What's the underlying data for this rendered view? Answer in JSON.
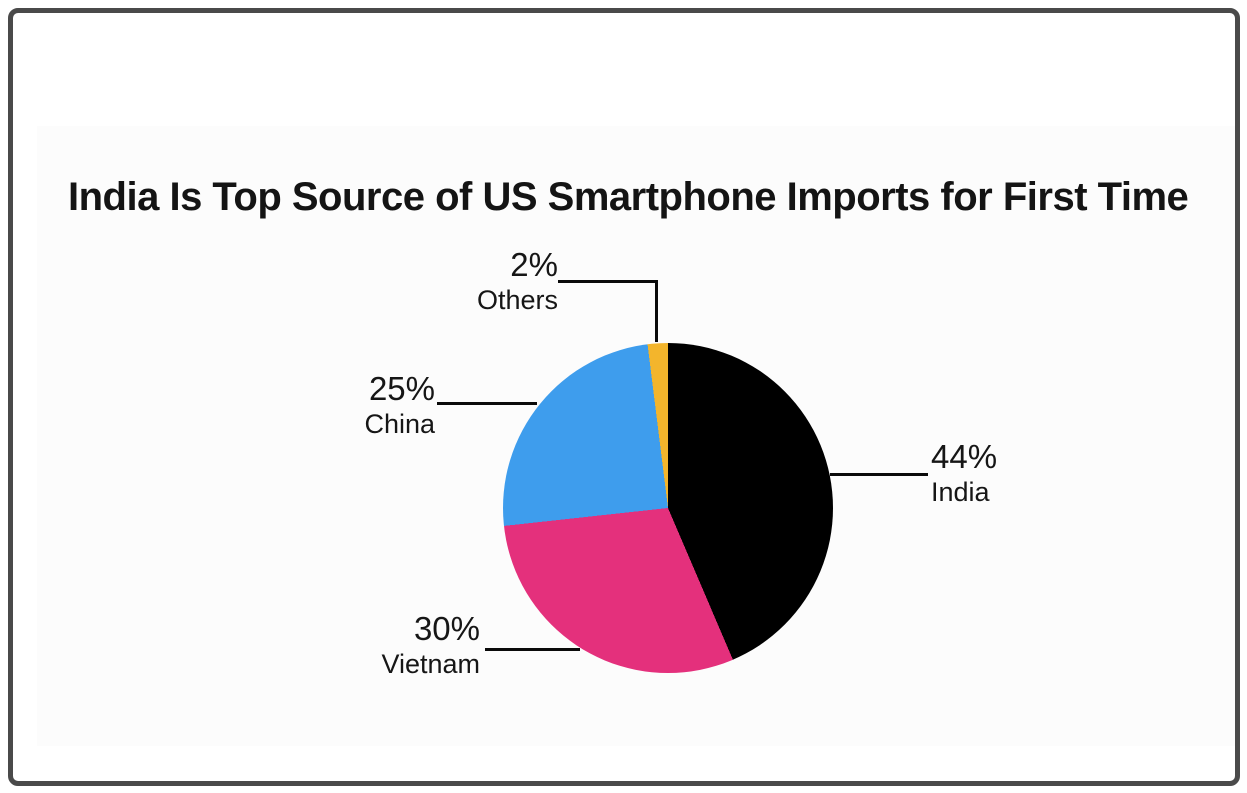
{
  "frame": {
    "border_color": "#4a4a4a",
    "panel_bg": "#fcfcfc",
    "page_bg": "#ffffff",
    "leader_line_color": "#0a0a0a",
    "text_color": "#161616"
  },
  "chart_data": {
    "type": "pie",
    "title": "India Is Top Source of US Smartphone Imports for First Time",
    "unit": "%",
    "start_angle_deg": 0,
    "direction": "clockwise",
    "label_style": "callout-with-leader-lines",
    "legend_position": "none",
    "slices": [
      {
        "label": "India",
        "value": 44,
        "display": "44%",
        "color": "#000000"
      },
      {
        "label": "Vietnam",
        "value": 30,
        "display": "30%",
        "color": "#e4307c"
      },
      {
        "label": "China",
        "value": 25,
        "display": "25%",
        "color": "#3e9ded"
      },
      {
        "label": "Others",
        "value": 2,
        "display": "2%",
        "color": "#f3b52c"
      }
    ]
  }
}
